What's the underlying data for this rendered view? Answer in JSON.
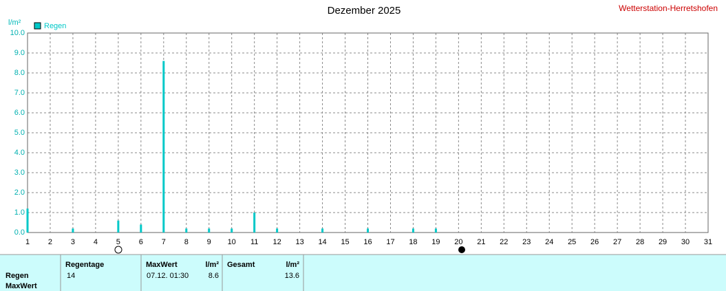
{
  "chart_data": {
    "type": "bar",
    "title": "Dezember 2025",
    "subtitle": "Wetterstation-Herretshofen",
    "y_label": "l/m²",
    "x": [
      1,
      3,
      5,
      6,
      7,
      8,
      9,
      10,
      11,
      12,
      14,
      16,
      18,
      19
    ],
    "series": [
      {
        "name": "Regen",
        "color": "#00c8c8",
        "values": [
          1.2,
          0.2,
          0.6,
          0.4,
          8.6,
          0.2,
          0.2,
          0.2,
          1.0,
          0.2,
          0.2,
          0.2,
          0.2,
          0.2
        ]
      }
    ],
    "xlim": [
      1,
      31
    ],
    "xticks": [
      1,
      2,
      3,
      4,
      5,
      6,
      7,
      8,
      9,
      10,
      11,
      12,
      13,
      14,
      15,
      16,
      17,
      18,
      19,
      20,
      21,
      22,
      23,
      24,
      25,
      26,
      27,
      28,
      29,
      30,
      31
    ],
    "ylim": [
      0,
      10
    ],
    "yticks": [
      {
        "value": 0,
        "label": "0.0"
      },
      {
        "value": 1,
        "label": "1.0"
      },
      {
        "value": 2,
        "label": "2.0"
      },
      {
        "value": 3,
        "label": "3.0"
      },
      {
        "value": 4,
        "label": "4.0"
      },
      {
        "value": 5,
        "label": "5.0"
      },
      {
        "value": 6,
        "label": "6.0"
      },
      {
        "value": 7,
        "label": "7.0"
      },
      {
        "value": 8,
        "label": "8.0"
      },
      {
        "value": 9,
        "label": "9.0"
      },
      {
        "value": 10,
        "label": "10.0"
      }
    ],
    "grid": true
  },
  "table": {
    "row_labels": [
      "Regen",
      "MaxWert"
    ],
    "columns": [
      {
        "header": "Regentage",
        "value": 14
      },
      {
        "header": "MaxWert",
        "unit": "l/m²",
        "time": "07.12. 01:30",
        "value": 8.6
      },
      {
        "header": "Gesamt",
        "unit": "l/m²",
        "value": 13.6
      }
    ]
  }
}
